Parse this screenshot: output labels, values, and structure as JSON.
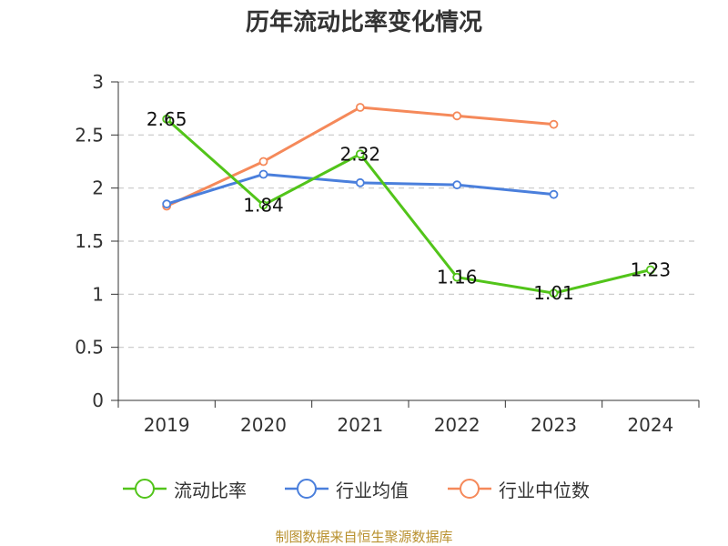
{
  "chart_data": {
    "type": "line",
    "title": "历年流动比率变化情况",
    "categories": [
      "2019",
      "2020",
      "2021",
      "2022",
      "2023",
      "2024"
    ],
    "ylim": [
      0,
      3
    ],
    "yticks": [
      "0",
      "0.5",
      "1",
      "1.5",
      "2",
      "2.5",
      "3"
    ],
    "grid": true,
    "legend_position": "bottom",
    "series": [
      {
        "name": "流动比率",
        "color": "#52c41a",
        "values": [
          2.65,
          1.84,
          2.32,
          1.16,
          1.01,
          1.23
        ],
        "labels": [
          "2.65",
          "1.84",
          "2.32",
          "1.16",
          "1.01",
          "1.23"
        ]
      },
      {
        "name": "行业均值",
        "color": "#4a7fdc",
        "values": [
          1.85,
          2.13,
          2.05,
          2.03,
          1.94,
          null
        ]
      },
      {
        "name": "行业中位数",
        "color": "#f5895a",
        "values": [
          1.83,
          2.25,
          2.76,
          2.68,
          2.6,
          null
        ]
      }
    ]
  },
  "source": "制图数据来自恒生聚源数据库"
}
